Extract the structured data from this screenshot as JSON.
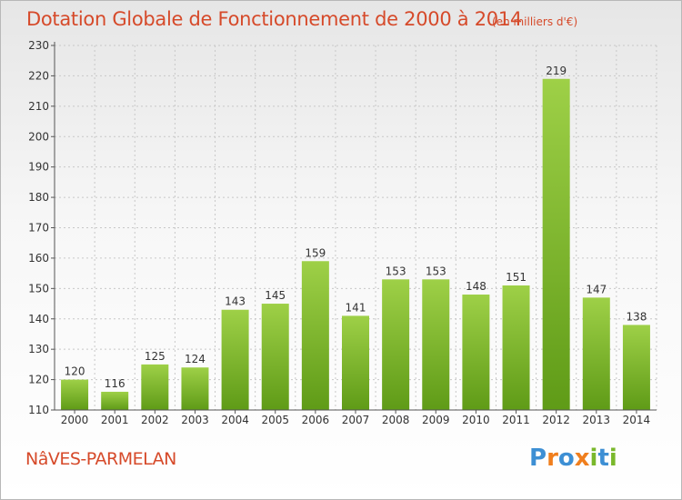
{
  "header": {
    "title": "Dotation Globale de Fonctionnement de 2000 à 2014",
    "unit_note": "(en milliers d'€)"
  },
  "commune": "NâVES-PARMELAN",
  "logo": {
    "text": "Proxiti",
    "colors": [
      "#3d8fd4",
      "#f07f1e",
      "#3d8fd4",
      "#f07f1e",
      "#7ab82c",
      "#3d8fd4",
      "#7ab82c"
    ]
  },
  "colors": {
    "title": "#d64a2a",
    "bar_light": "#9ed047",
    "bar_dark": "#5f9b17",
    "axis": "#555555",
    "grid": "#c8c8c8"
  },
  "chart_data": {
    "type": "bar",
    "title": "Dotation Globale de Fonctionnement de 2000 à 2014",
    "subtitle": "(en milliers d'€)",
    "categories": [
      "2000",
      "2001",
      "2002",
      "2003",
      "2004",
      "2005",
      "2006",
      "2007",
      "2008",
      "2009",
      "2010",
      "2011",
      "2012",
      "2013",
      "2014"
    ],
    "values": [
      120,
      116,
      125,
      124,
      143,
      145,
      159,
      141,
      153,
      153,
      148,
      151,
      219,
      147,
      138
    ],
    "ylim": [
      110,
      230
    ],
    "yticks": [
      110,
      120,
      130,
      140,
      150,
      160,
      170,
      180,
      190,
      200,
      210,
      220,
      230
    ],
    "grid": "horizontal dashed",
    "legend": "none",
    "data_labels": true
  }
}
